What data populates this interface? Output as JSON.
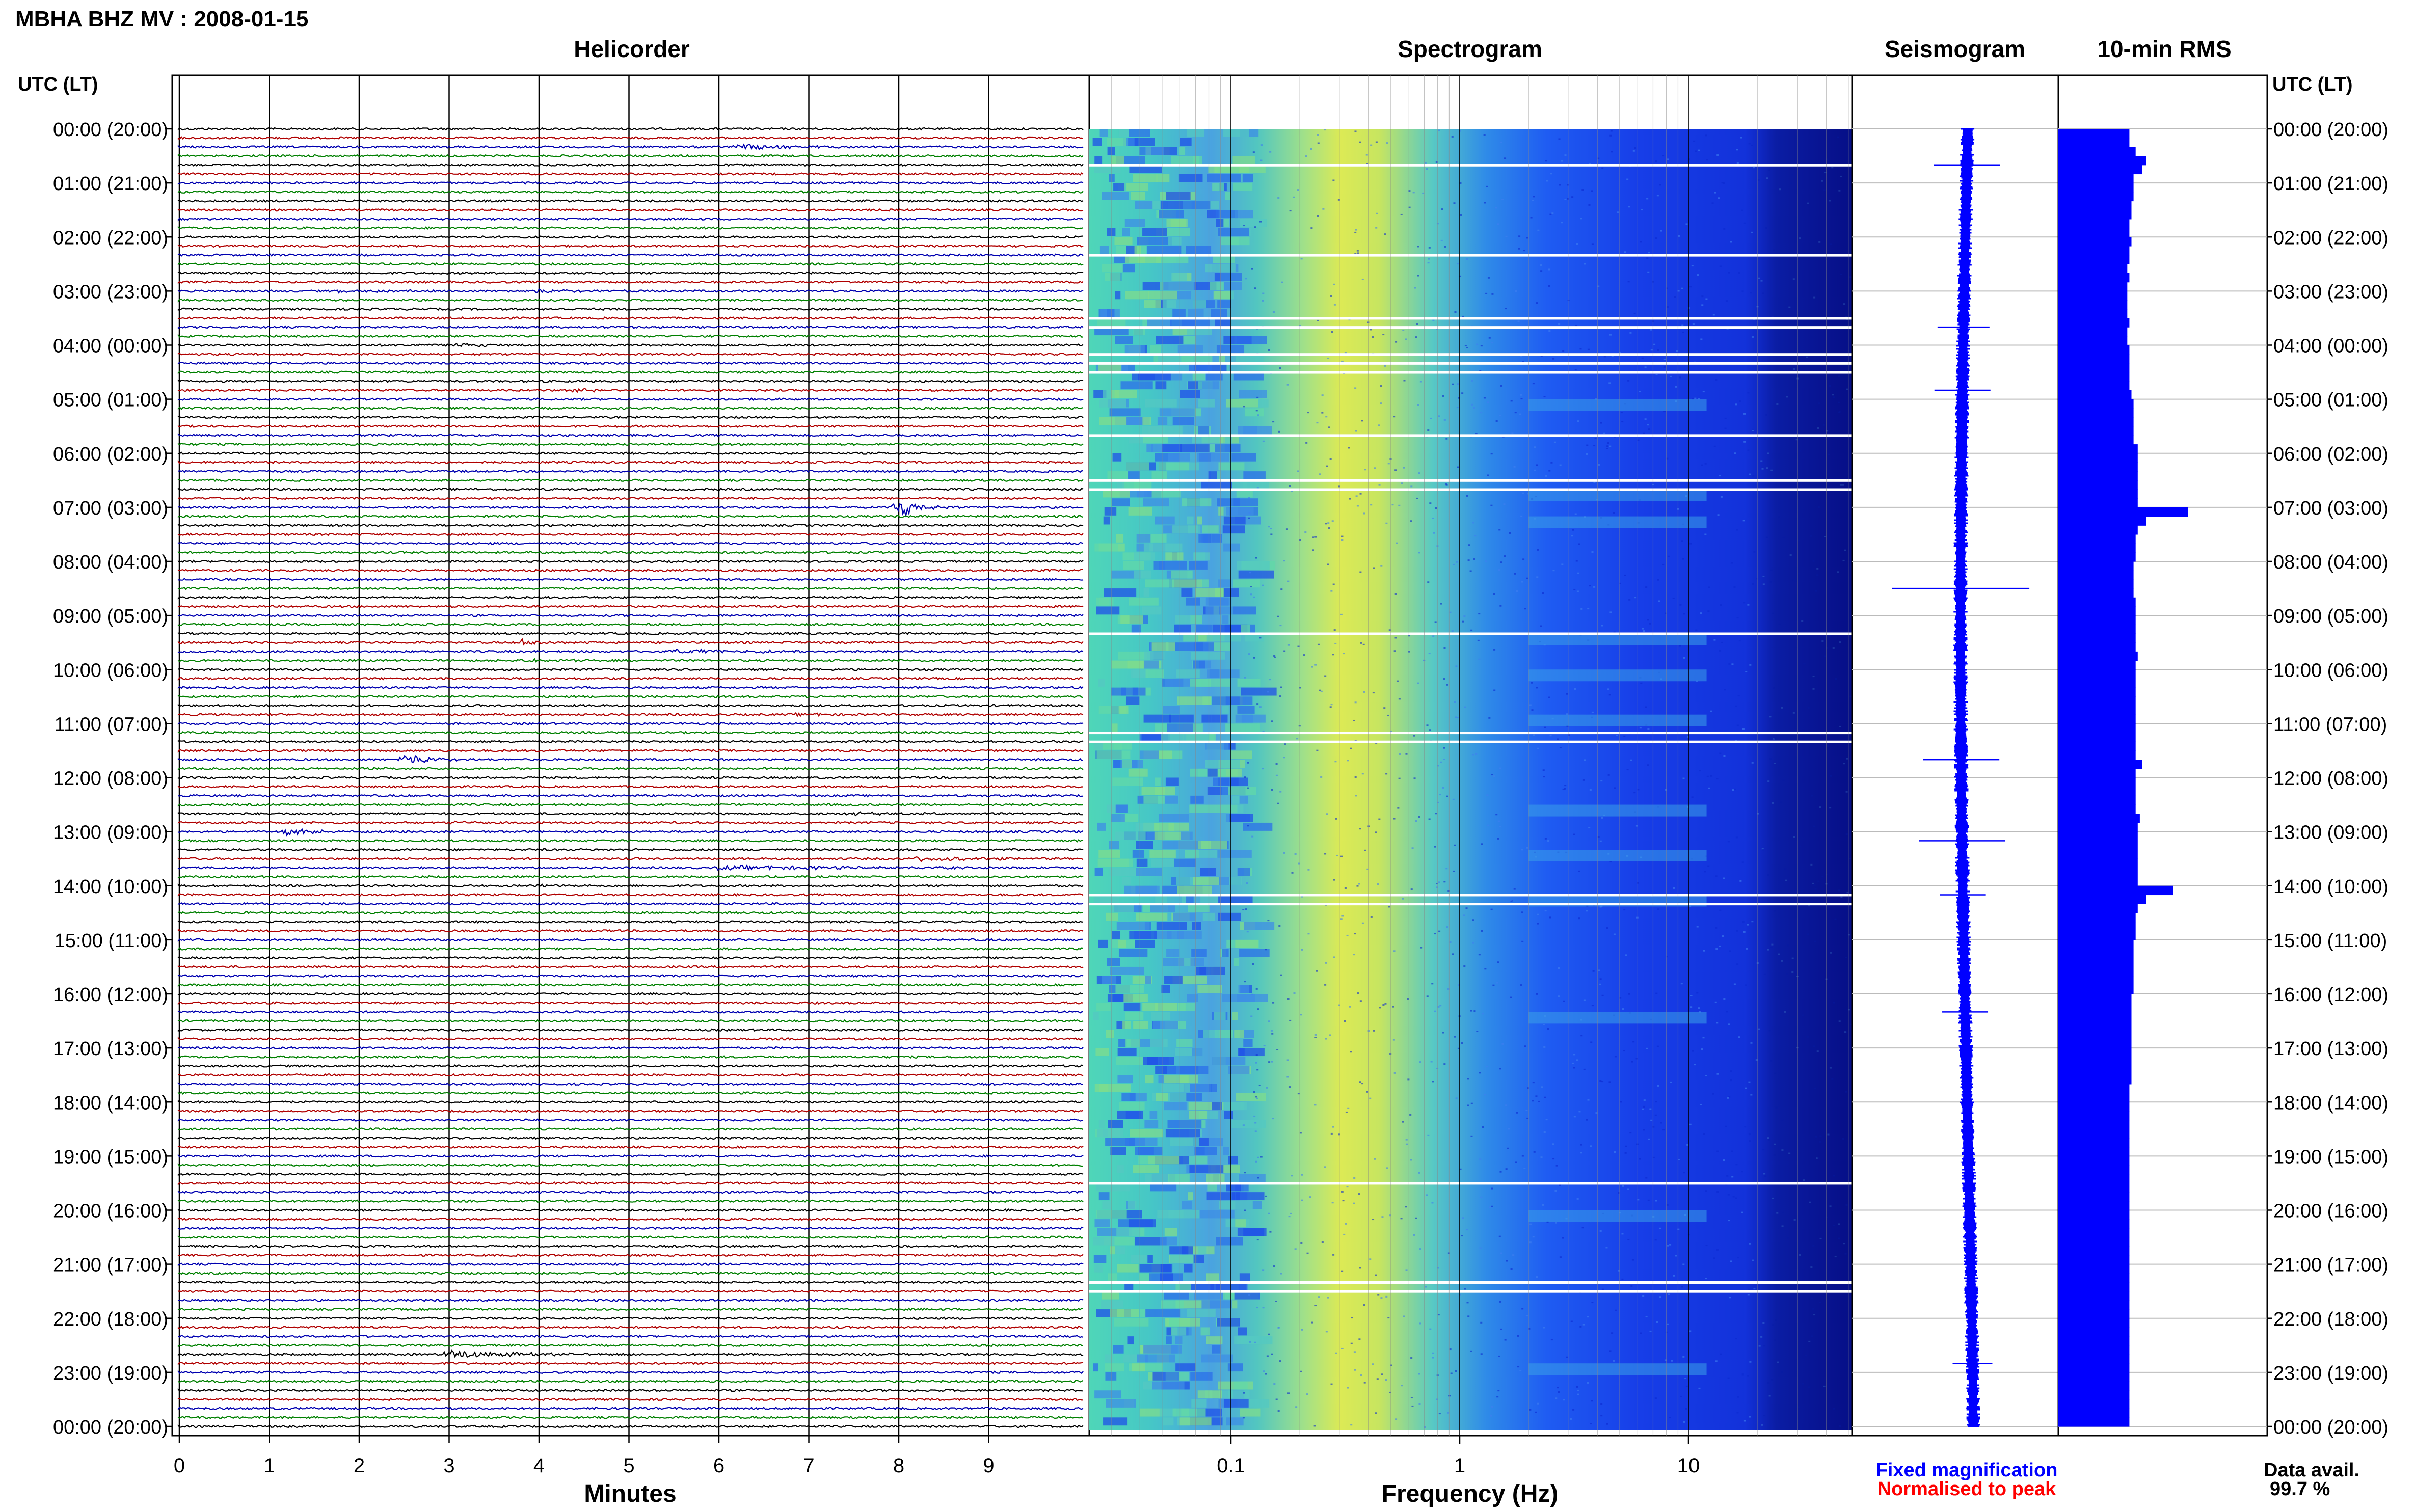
{
  "header": {
    "title": "MBHA BHZ MV : 2008-01-15",
    "utc_label_left": "UTC (LT)",
    "utc_label_right": "UTC (LT)"
  },
  "panels": {
    "helicorder": "Helicorder",
    "spectrogram": "Spectrogram",
    "seismogram": "Seismogram",
    "rms": "10-min RMS"
  },
  "time_labels": [
    "00:00 (20:00)",
    "01:00 (21:00)",
    "02:00 (22:00)",
    "03:00 (23:00)",
    "04:00 (00:00)",
    "05:00 (01:00)",
    "06:00 (02:00)",
    "07:00 (03:00)",
    "08:00 (04:00)",
    "09:00 (05:00)",
    "10:00 (06:00)",
    "11:00 (07:00)",
    "12:00 (08:00)",
    "13:00 (09:00)",
    "14:00 (10:00)",
    "15:00 (11:00)",
    "16:00 (12:00)",
    "17:00 (13:00)",
    "18:00 (14:00)",
    "19:00 (15:00)",
    "20:00 (16:00)",
    "21:00 (17:00)",
    "22:00 (18:00)",
    "23:00 (19:00)",
    "00:00 (20:00)"
  ],
  "footer": {
    "xlabel_helicorder": "Minutes",
    "xlabel_spectrogram": "Frequency (Hz)",
    "fixed_magnification": "Fixed magnification",
    "normalised_to_peak": "Normalised to peak",
    "data_avail_label": "Data avail.",
    "data_avail_value": "99.7 %"
  },
  "colors": {
    "trace_colors": [
      "#000000",
      "#b00000",
      "#0000b0",
      "#008000"
    ],
    "fixed_color": "#0000ff",
    "normalised_color": "#ff0000",
    "rms_bar": "#0000ff",
    "seismogram": "#0000ff"
  },
  "chart_data": [
    {
      "type": "line",
      "name": "helicorder",
      "title": "Helicorder",
      "xlabel": "Minutes",
      "xlim": [
        0,
        10
      ],
      "x_ticks": [
        0,
        1,
        2,
        3,
        4,
        5,
        6,
        7,
        8,
        9
      ],
      "rows_per_hour": 6,
      "rows": 144,
      "y_tick_labels": "time_labels",
      "events": [
        {
          "row": 2,
          "minute": 6.2,
          "amp": 6,
          "len": 1.5
        },
        {
          "row": 18,
          "minute": 1.8,
          "amp": 3,
          "len": 1.2
        },
        {
          "row": 18,
          "minute": 4.0,
          "amp": 3,
          "len": 1.5
        },
        {
          "row": 24,
          "minute": 3.1,
          "amp": 5,
          "len": 0.8
        },
        {
          "row": 29,
          "minute": 4.4,
          "amp": 8,
          "len": 0.6
        },
        {
          "row": 42,
          "minute": 8.0,
          "amp": 22,
          "len": 0.7
        },
        {
          "row": 57,
          "minute": 3.8,
          "amp": 6,
          "len": 1.0
        },
        {
          "row": 58,
          "minute": 5.5,
          "amp": 4,
          "len": 3.0
        },
        {
          "row": 59,
          "minute": 3.9,
          "amp": 3,
          "len": 1.4
        },
        {
          "row": 65,
          "minute": 6.9,
          "amp": 3,
          "len": 1.0
        },
        {
          "row": 70,
          "minute": 2.5,
          "amp": 12,
          "len": 0.8
        },
        {
          "row": 76,
          "minute": 7.5,
          "amp": 4,
          "len": 0.9
        },
        {
          "row": 77,
          "minute": 3.1,
          "amp": 4,
          "len": 0.4
        },
        {
          "row": 78,
          "minute": 1.2,
          "amp": 6,
          "len": 1.2
        },
        {
          "row": 81,
          "minute": 8.2,
          "amp": 5,
          "len": 2.0
        },
        {
          "row": 82,
          "minute": 6.0,
          "amp": 4,
          "len": 5.0
        },
        {
          "row": 84,
          "minute": 4.0,
          "amp": 3,
          "len": 1.0
        },
        {
          "row": 136,
          "minute": 3.0,
          "amp": 8,
          "len": 2.0
        }
      ]
    },
    {
      "type": "heatmap",
      "name": "spectrogram",
      "title": "Spectrogram",
      "xlabel": "Frequency (Hz)",
      "x_scale": "log",
      "xlim": [
        0.02,
        50
      ],
      "x_ticks": [
        0.1,
        1,
        10
      ],
      "rows": 144,
      "gap_rows": [
        4,
        14,
        21,
        22,
        25,
        26,
        27,
        34,
        39,
        40,
        56,
        67,
        68,
        85,
        86,
        117,
        128,
        129
      ],
      "event_rows": [
        30,
        40,
        43,
        56,
        60,
        65,
        75,
        80,
        85,
        98,
        120,
        137
      ]
    },
    {
      "type": "line",
      "name": "seismogram",
      "title": "Seismogram",
      "rows": 144,
      "spikes": [
        {
          "row": 4,
          "amp": 0.25
        },
        {
          "row": 22,
          "amp": 0.18
        },
        {
          "row": 29,
          "amp": 0.2
        },
        {
          "row": 51,
          "amp": 0.6
        },
        {
          "row": 70,
          "amp": 0.3
        },
        {
          "row": 79,
          "amp": 0.35
        },
        {
          "row": 85,
          "amp": 0.15
        },
        {
          "row": 98,
          "amp": 0.15
        },
        {
          "row": 137,
          "amp": 0.12
        }
      ]
    },
    {
      "type": "bar",
      "name": "rms",
      "title": "10-min RMS",
      "orientation": "horizontal",
      "rows": 144,
      "values": [
        0.34,
        0.34,
        0.37,
        0.42,
        0.4,
        0.36,
        0.36,
        0.36,
        0.35,
        0.35,
        0.34,
        0.34,
        0.35,
        0.34,
        0.34,
        0.33,
        0.34,
        0.33,
        0.33,
        0.33,
        0.33,
        0.34,
        0.33,
        0.33,
        0.34,
        0.34,
        0.34,
        0.34,
        0.34,
        0.35,
        0.36,
        0.36,
        0.36,
        0.36,
        0.36,
        0.38,
        0.38,
        0.38,
        0.38,
        0.38,
        0.38,
        0.38,
        0.62,
        0.42,
        0.38,
        0.37,
        0.37,
        0.37,
        0.36,
        0.36,
        0.36,
        0.36,
        0.37,
        0.37,
        0.37,
        0.37,
        0.37,
        0.37,
        0.38,
        0.37,
        0.37,
        0.37,
        0.37,
        0.37,
        0.37,
        0.37,
        0.37,
        0.37,
        0.37,
        0.37,
        0.4,
        0.37,
        0.37,
        0.37,
        0.37,
        0.37,
        0.39,
        0.38,
        0.38,
        0.38,
        0.38,
        0.38,
        0.38,
        0.38,
        0.55,
        0.42,
        0.38,
        0.37,
        0.37,
        0.37,
        0.36,
        0.36,
        0.36,
        0.36,
        0.36,
        0.36,
        0.35,
        0.35,
        0.35,
        0.35,
        0.35,
        0.35,
        0.35,
        0.35,
        0.35,
        0.35,
        0.34,
        0.34,
        0.34,
        0.34,
        0.34,
        0.34,
        0.34,
        0.34,
        0.34,
        0.34,
        0.34,
        0.34,
        0.34,
        0.34,
        0.34,
        0.34,
        0.34,
        0.34,
        0.34,
        0.34,
        0.34,
        0.34,
        0.34,
        0.34,
        0.34,
        0.34,
        0.34,
        0.34,
        0.34,
        0.34,
        0.34,
        0.34,
        0.34,
        0.34,
        0.34,
        0.34,
        0.34,
        0.34
      ]
    }
  ]
}
